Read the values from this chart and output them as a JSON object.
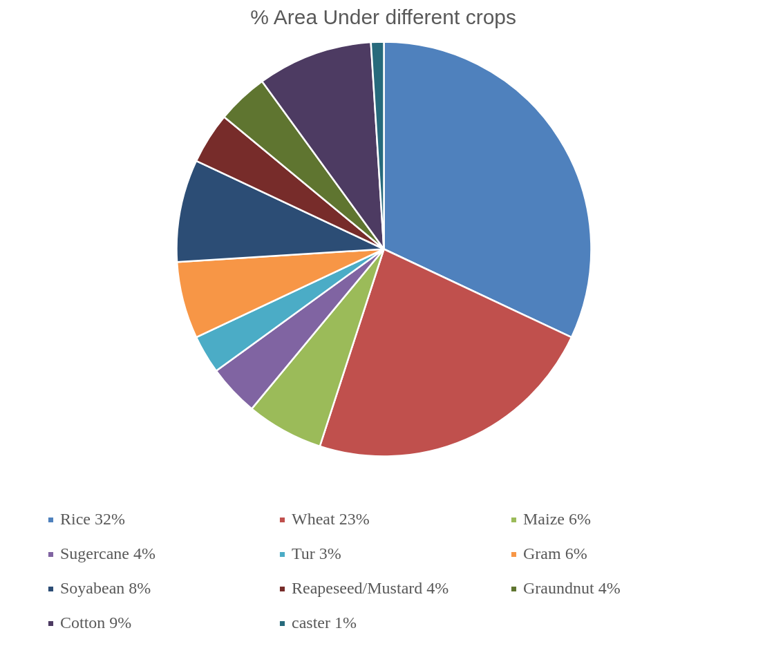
{
  "chart_data": {
    "type": "pie",
    "title": "% Area Under different crops",
    "categories": [
      "Rice 32%",
      "Wheat 23%",
      "Maize 6%",
      "Sugercane 4%",
      "Tur 3%",
      "Gram 6%",
      "Soyabean 8%",
      "Reapeseed/Mustard 4%",
      "Graundnut 4%",
      "Cotton 9%",
      "caster 1%"
    ],
    "values": [
      32,
      23,
      6,
      4,
      3,
      6,
      8,
      4,
      4,
      9,
      1
    ],
    "colors": [
      "#4f81bd",
      "#c0504d",
      "#9bbb59",
      "#8064a2",
      "#4bacc6",
      "#f79646",
      "#2c4d75",
      "#772c2a",
      "#5f7530",
      "#4d3b62",
      "#276a7c"
    ],
    "legend": "bottom"
  }
}
